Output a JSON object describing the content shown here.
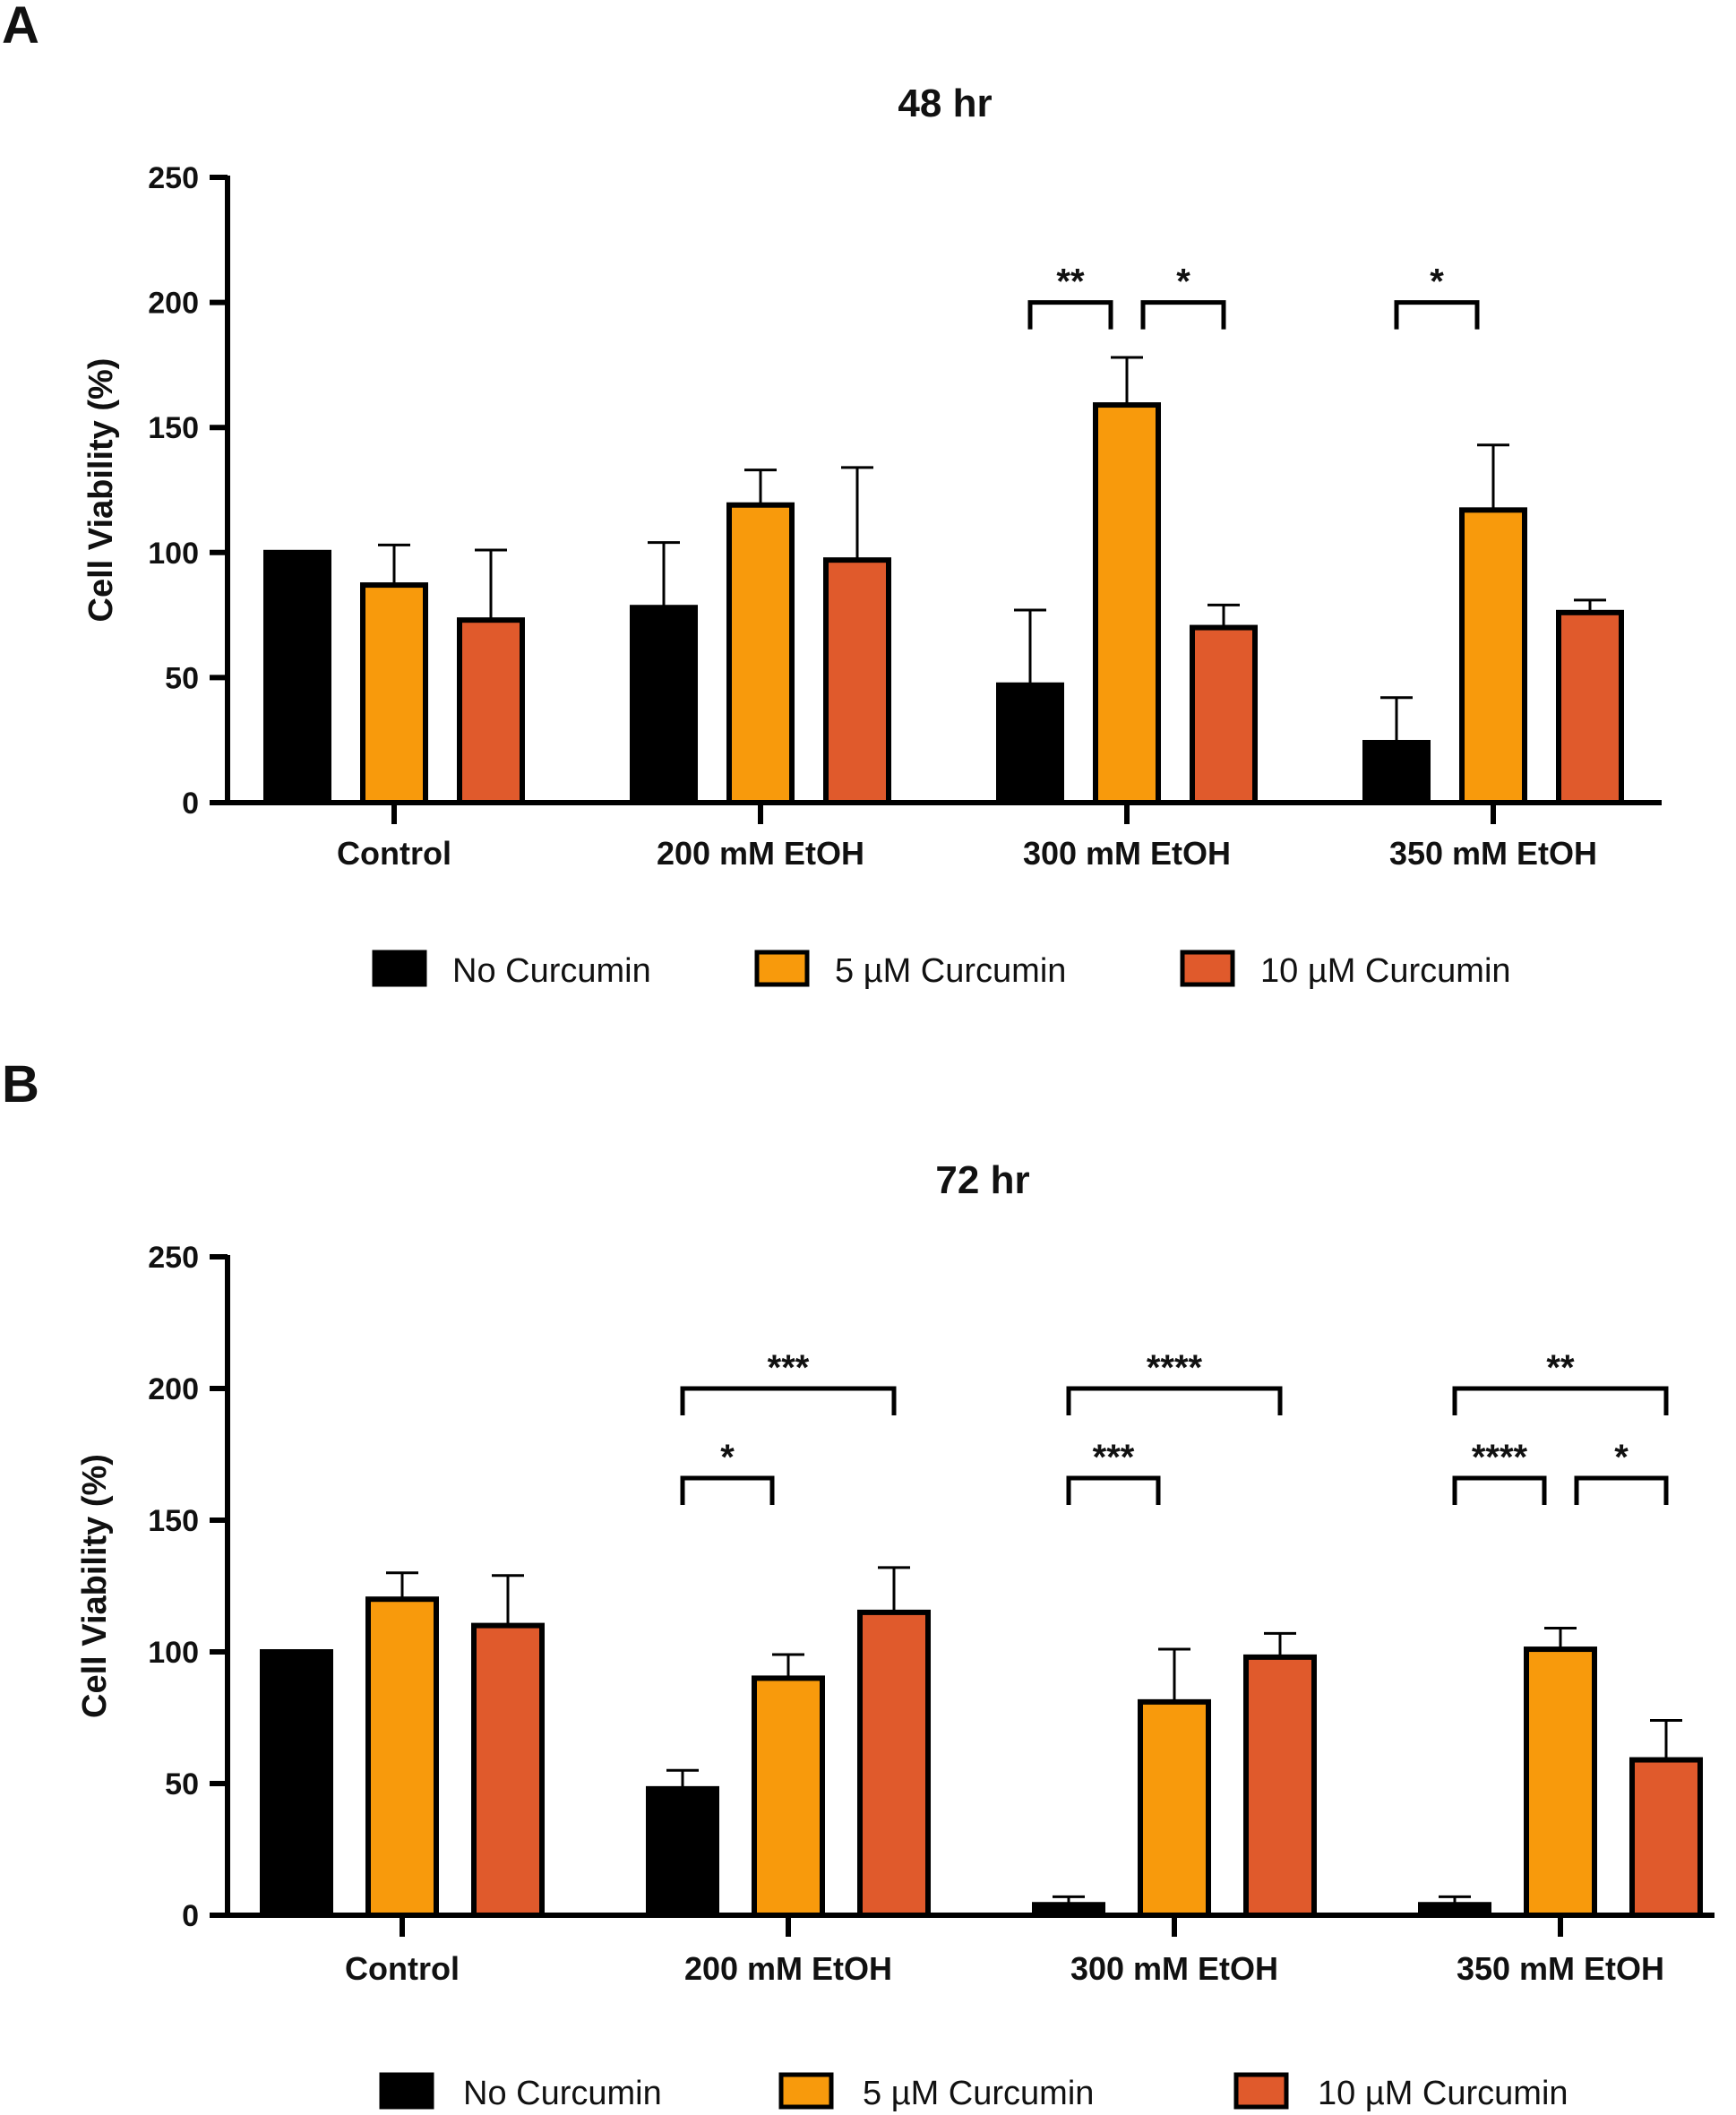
{
  "chart_data": [
    {
      "panel": "A",
      "type": "bar",
      "title": "48 hr",
      "ylabel": "Cell Viability (%)",
      "ylim": [
        0,
        250
      ],
      "yticks": [
        0,
        50,
        100,
        150,
        200,
        250
      ],
      "categories": [
        "Control",
        "200 mM EtOH",
        "300 mM EtOH",
        "350 mM EtOH"
      ],
      "series": [
        {
          "name": "No Curcumin",
          "color": "#000000",
          "values": [
            100,
            78,
            47,
            24
          ],
          "errors": [
            0,
            26,
            30,
            18
          ]
        },
        {
          "name": "5 µM Curcumin",
          "color": "#F89A0C",
          "values": [
            87,
            119,
            159,
            117
          ],
          "errors": [
            16,
            14,
            19,
            26
          ]
        },
        {
          "name": "10 µM Curcumin",
          "color": "#E05A2C",
          "values": [
            73,
            97,
            70,
            76
          ],
          "errors": [
            28,
            37,
            9,
            5
          ]
        }
      ],
      "significance": [
        {
          "category": 2,
          "from": 0,
          "to": 1,
          "y": 200,
          "label": "**"
        },
        {
          "category": 2,
          "from": 1,
          "to": 2,
          "y": 200,
          "label": "*"
        },
        {
          "category": 3,
          "from": 0,
          "to": 1,
          "y": 200,
          "label": "*"
        }
      ],
      "legend_position": "bottom"
    },
    {
      "panel": "B",
      "type": "bar",
      "title": "72 hr",
      "ylabel": "Cell Viability (%)",
      "ylim": [
        0,
        250
      ],
      "yticks": [
        0,
        50,
        100,
        150,
        200,
        250
      ],
      "categories": [
        "Control",
        "200 mM EtOH",
        "300 mM EtOH",
        "350 mM EtOH"
      ],
      "series": [
        {
          "name": "No Curcumin",
          "color": "#000000",
          "values": [
            100,
            48,
            4,
            4
          ],
          "errors": [
            0,
            7,
            3,
            3
          ]
        },
        {
          "name": "5 µM Curcumin",
          "color": "#F89A0C",
          "values": [
            120,
            90,
            81,
            101
          ],
          "errors": [
            10,
            9,
            20,
            8
          ]
        },
        {
          "name": "10 µM Curcumin",
          "color": "#E05A2C",
          "values": [
            110,
            115,
            98,
            59
          ],
          "errors": [
            19,
            17,
            9,
            15
          ]
        }
      ],
      "significance": [
        {
          "category": 1,
          "from": 0,
          "to": 2,
          "y": 200,
          "label": "***"
        },
        {
          "category": 1,
          "from": 0,
          "to": 1,
          "y": 166,
          "label": "*"
        },
        {
          "category": 2,
          "from": 0,
          "to": 2,
          "y": 200,
          "label": "****"
        },
        {
          "category": 2,
          "from": 0,
          "to": 1,
          "y": 166,
          "label": "***"
        },
        {
          "category": 3,
          "from": 0,
          "to": 2,
          "y": 200,
          "label": "**"
        },
        {
          "category": 3,
          "from": 0,
          "to": 1,
          "y": 166,
          "label": "****"
        },
        {
          "category": 3,
          "from": 1,
          "to": 2,
          "y": 166,
          "label": "*"
        }
      ],
      "legend_position": "bottom"
    }
  ]
}
